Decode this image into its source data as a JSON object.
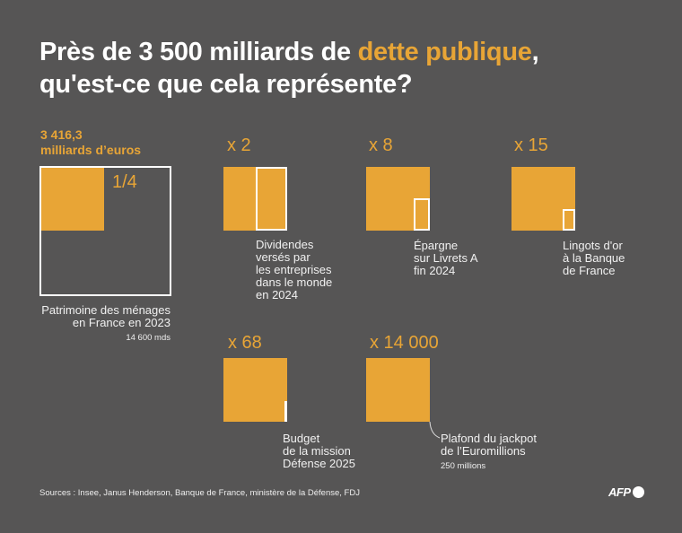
{
  "title": {
    "part1": "Près de 3 500 milliards de ",
    "highlight": "dette publique",
    "part2": ",",
    "line2": "qu'est-ce que cela représente?"
  },
  "debt": {
    "line1": "3 416,3",
    "line2": "milliards d’euros"
  },
  "colors": {
    "background": "#565555",
    "accent": "#e8a536",
    "outline": "#ffffff"
  },
  "comparisons": [
    {
      "ratio_label": "1/4",
      "ratio": 0.25,
      "caption": [
        "Patrimoine des ménages",
        "en France en 2023"
      ],
      "note": "14 600 mds"
    },
    {
      "ratio_label": "x 2",
      "ratio": 2,
      "caption": [
        "Dividendes",
        "versés par",
        "les entreprises",
        "dans le monde",
        "en 2024"
      ]
    },
    {
      "ratio_label": "x 8",
      "ratio": 8,
      "caption": [
        "Épargne",
        "sur Livrets A",
        "fin 2024"
      ]
    },
    {
      "ratio_label": "x 15",
      "ratio": 15,
      "caption": [
        "Lingots d'or",
        "à la Banque",
        "de France"
      ]
    },
    {
      "ratio_label": "x 68",
      "ratio": 68,
      "caption": [
        "Budget",
        "de la mission",
        "Défense 2025"
      ]
    },
    {
      "ratio_label": "x 14 000",
      "ratio": 14000,
      "caption": [
        "Plafond du jackpot",
        "de l’Euromillions"
      ],
      "note": "250 millions"
    }
  ],
  "sources": "Sources : Insee, Janus Henderson, Banque de France, ministère de la Défense, FDJ",
  "logo": "AFP"
}
